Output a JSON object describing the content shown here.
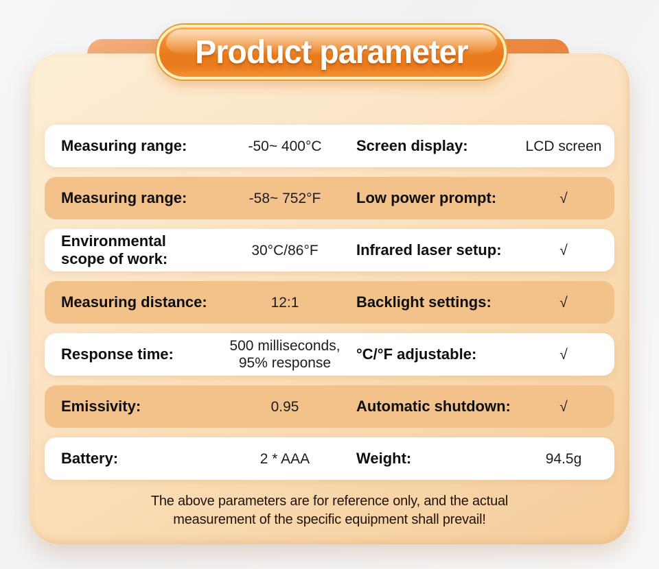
{
  "title": "Product parameter",
  "colors": {
    "accent_orange": "#ee8226",
    "tab_orange": "#ec863e",
    "row_orange": "#f3c28b",
    "card_peach": "#fce6c8",
    "background_gray": "#f4f4f6",
    "title_text": "#ffffff",
    "label_text": "#0e0e0e"
  },
  "table": {
    "rows": [
      {
        "label1": "Measuring range:",
        "value1": "-50~ 400°C",
        "label2": "Screen display:",
        "value2": "LCD screen"
      },
      {
        "label1": "Measuring range:",
        "value1": "-58~ 752°F",
        "label2": "Low power prompt:",
        "value2": "√"
      },
      {
        "label1": "Environmental\nscope of work:",
        "value1": "30°C/86°F",
        "label2": "Infrared laser setup:",
        "value2": "√"
      },
      {
        "label1": "Measuring distance:",
        "value1": "12:1",
        "label2": "Backlight settings:",
        "value2": "√"
      },
      {
        "label1": "Response time:",
        "value1": "500 milliseconds,\n95% response",
        "label2": "°C/°F adjustable:",
        "value2": "√"
      },
      {
        "label1": "Emissivity:",
        "value1": "0.95",
        "label2": "Automatic shutdown:",
        "value2": "√"
      },
      {
        "label1": "Battery:",
        "value1": "2 * AAA",
        "label2": "Weight:",
        "value2": "94.5g"
      }
    ]
  },
  "footer": {
    "line1": "The above parameters are for reference only, and the actual",
    "line2": "measurement of the specific equipment shall prevail!"
  }
}
